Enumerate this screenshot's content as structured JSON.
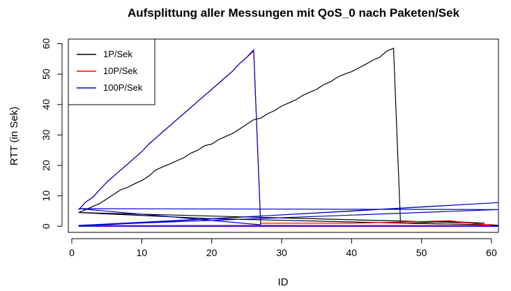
{
  "chart_data": {
    "type": "line",
    "title": "Aufsplittung aller Messungen mit QoS_0 nach Paketen/Sek",
    "xlabel": "ID",
    "ylabel": "RTT (in Sek)",
    "xlim": [
      -0.5,
      61
    ],
    "ylim": [
      -2,
      61.5
    ],
    "x_ticks": [
      0,
      10,
      20,
      30,
      40,
      50,
      60
    ],
    "y_ticks": [
      0,
      10,
      20,
      30,
      40,
      50,
      60
    ],
    "grid": false,
    "legend_position": "top-left",
    "series": [
      {
        "name": "1P/Sek",
        "color": "#000000",
        "points": [
          [
            1,
            4.5
          ],
          [
            2,
            5.5
          ],
          [
            3,
            6.5
          ],
          [
            4,
            7.5
          ],
          [
            5,
            9.0
          ],
          [
            6,
            10.5
          ],
          [
            7,
            12.0
          ],
          [
            8,
            12.8
          ],
          [
            9,
            14.0
          ],
          [
            10,
            15.0
          ],
          [
            11,
            16.5
          ],
          [
            12,
            18.5
          ],
          [
            13,
            19.5
          ],
          [
            14,
            20.5
          ],
          [
            15,
            21.5
          ],
          [
            16,
            22.5
          ],
          [
            17,
            24.0
          ],
          [
            18,
            25.0
          ],
          [
            19,
            26.5
          ],
          [
            20,
            27.0
          ],
          [
            21,
            28.5
          ],
          [
            22,
            29.5
          ],
          [
            23,
            30.5
          ],
          [
            24,
            32.0
          ],
          [
            25,
            33.5
          ],
          [
            26,
            35.0
          ],
          [
            27,
            35.5
          ],
          [
            28,
            37.0
          ],
          [
            29,
            38.0
          ],
          [
            30,
            39.5
          ],
          [
            31,
            40.5
          ],
          [
            32,
            41.5
          ],
          [
            33,
            43.0
          ],
          [
            34,
            44.0
          ],
          [
            35,
            45.0
          ],
          [
            36,
            46.5
          ],
          [
            37,
            47.5
          ],
          [
            38,
            49.0
          ],
          [
            39,
            50.0
          ],
          [
            40,
            50.8
          ],
          [
            41,
            52.0
          ],
          [
            42,
            53.2
          ],
          [
            43,
            54.5
          ],
          [
            44,
            55.5
          ],
          [
            45,
            57.5
          ],
          [
            46,
            58.5
          ],
          [
            47,
            1.0
          ],
          [
            48,
            1.0
          ],
          [
            54,
            1.6
          ],
          [
            59,
            1.0
          ],
          [
            1,
            4.5
          ],
          [
            20,
            2.5
          ],
          [
            48,
            1.0
          ],
          [
            60,
            0.5
          ],
          [
            61,
            0.3
          ],
          [
            1,
            0.2
          ],
          [
            30,
            0.3
          ],
          [
            61,
            0.2
          ]
        ]
      },
      {
        "name": "10P/Sek",
        "color": "#ff0000",
        "points": [
          [
            1,
            5.5
          ],
          [
            2,
            8.0
          ],
          [
            3,
            9.5
          ],
          [
            4,
            12.0
          ],
          [
            5,
            14.5
          ],
          [
            6,
            16.5
          ],
          [
            7,
            18.5
          ],
          [
            8,
            20.5
          ],
          [
            9,
            22.5
          ],
          [
            10,
            24.5
          ],
          [
            11,
            27.0
          ],
          [
            12,
            29.0
          ],
          [
            13,
            31.0
          ],
          [
            14,
            33.0
          ],
          [
            15,
            35.0
          ],
          [
            16,
            37.0
          ],
          [
            17,
            39.0
          ],
          [
            18,
            41.0
          ],
          [
            19,
            43.0
          ],
          [
            20,
            45.0
          ],
          [
            21,
            47.0
          ],
          [
            22,
            49.0
          ],
          [
            23,
            51.0
          ],
          [
            24,
            53.5
          ],
          [
            25,
            55.5
          ],
          [
            26,
            57.5
          ],
          [
            27,
            1.0
          ],
          [
            30,
            1.0
          ],
          [
            40,
            1.0
          ],
          [
            54,
            1.8
          ],
          [
            60,
            0.3
          ],
          [
            1,
            0.2
          ],
          [
            61,
            0.0
          ]
        ]
      },
      {
        "name": "100P/Sek",
        "color": "#0000cc",
        "points": [
          [
            1,
            5.5
          ],
          [
            2,
            8.0
          ],
          [
            3,
            9.5
          ],
          [
            4,
            12.0
          ],
          [
            5,
            14.5
          ],
          [
            6,
            16.5
          ],
          [
            7,
            18.5
          ],
          [
            8,
            20.5
          ],
          [
            9,
            22.5
          ],
          [
            10,
            24.5
          ],
          [
            11,
            27.0
          ],
          [
            12,
            29.0
          ],
          [
            13,
            31.0
          ],
          [
            14,
            33.0
          ],
          [
            15,
            35.0
          ],
          [
            16,
            37.0
          ],
          [
            17,
            39.0
          ],
          [
            18,
            41.0
          ],
          [
            19,
            43.0
          ],
          [
            20,
            45.0
          ],
          [
            21,
            47.0
          ],
          [
            22,
            49.0
          ],
          [
            23,
            51.0
          ],
          [
            24,
            53.5
          ],
          [
            25,
            55.5
          ],
          [
            26,
            58.0
          ],
          [
            27,
            0.5
          ],
          [
            1,
            5.8
          ],
          [
            61,
            5.5
          ],
          [
            1,
            0.3
          ],
          [
            20,
            2.5
          ],
          [
            40,
            5.0
          ],
          [
            61,
            7.8
          ],
          [
            1,
            0.0
          ],
          [
            61,
            0.0
          ]
        ]
      }
    ]
  }
}
